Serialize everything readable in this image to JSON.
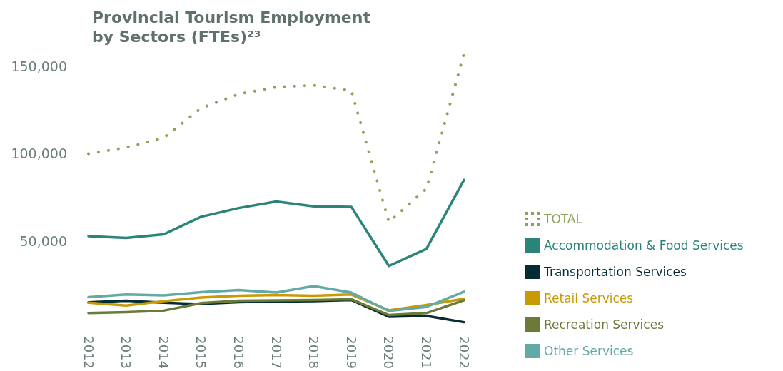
{
  "chart_data": {
    "type": "line",
    "title": "Provincial Tourism Employment\nby Sectors (FTEs)²³",
    "categories": [
      "2012",
      "2013",
      "2014",
      "2015",
      "2016",
      "2017",
      "2018",
      "2019",
      "2020",
      "2021",
      "2022"
    ],
    "series": [
      {
        "name": "TOTAL",
        "color": "#8aa35a",
        "line_style": "dotted",
        "values": [
          100000,
          103500,
          109000,
          126000,
          134000,
          138000,
          139000,
          136000,
          61000,
          80000,
          157000
        ]
      },
      {
        "name": "Accommodation & Food Services",
        "color": "#2a8478",
        "values": [
          53000,
          52000,
          54000,
          64000,
          69000,
          72700,
          70000,
          69700,
          36000,
          45700,
          85000
        ]
      },
      {
        "name": "Transportation Services",
        "color": "#032d33",
        "values": [
          15200,
          16200,
          15000,
          14300,
          15300,
          15700,
          15900,
          16600,
          7000,
          7500,
          3900
        ]
      },
      {
        "name": "Retail Services",
        "color": "#c99a06",
        "values": [
          15000,
          13400,
          15900,
          18000,
          19000,
          19400,
          19000,
          19700,
          10700,
          13700,
          17300
        ]
      },
      {
        "name": "Recreation Services",
        "color": "#6b7a38",
        "values": [
          9100,
          9600,
          10500,
          14800,
          16200,
          16400,
          16600,
          17000,
          8000,
          9100,
          16400
        ]
      },
      {
        "name": "Other Services",
        "color": "#62aaa6",
        "values": [
          18200,
          19700,
          19200,
          21000,
          22300,
          20800,
          24500,
          20800,
          10300,
          12600,
          21300
        ]
      }
    ],
    "ylim": [
      0,
      160000
    ],
    "yticks": [
      {
        "value": 50000,
        "label": "50,000"
      },
      {
        "value": 100000,
        "label": "100,000"
      },
      {
        "value": 150000,
        "label": "150,000"
      }
    ],
    "grid": false,
    "legend": "right",
    "marker": "none",
    "line_style": "solid"
  }
}
